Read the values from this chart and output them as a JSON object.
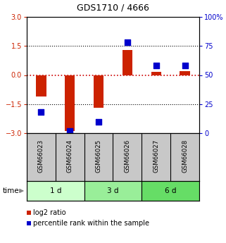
{
  "title": "GDS1710 / 4666",
  "samples": [
    "GSM66023",
    "GSM66024",
    "GSM66025",
    "GSM66026",
    "GSM66027",
    "GSM66028"
  ],
  "log2_ratio": [
    -1.1,
    -2.9,
    -1.7,
    1.3,
    0.15,
    0.2
  ],
  "percentile_rank": [
    18,
    2,
    10,
    78,
    58,
    58
  ],
  "time_groups": [
    {
      "label": "1 d",
      "samples": [
        0,
        1
      ],
      "color": "#ccffcc"
    },
    {
      "label": "3 d",
      "samples": [
        2,
        3
      ],
      "color": "#99ee99"
    },
    {
      "label": "6 d",
      "samples": [
        4,
        5
      ],
      "color": "#66dd66"
    }
  ],
  "ylim_left": [
    -3,
    3
  ],
  "ylim_right": [
    0,
    100
  ],
  "yticks_left": [
    -3,
    -1.5,
    0,
    1.5,
    3
  ],
  "yticks_right": [
    0,
    25,
    50,
    75,
    100
  ],
  "bar_color": "#cc2200",
  "dot_color": "#0000cc",
  "hline_color": "#cc0000",
  "dotline_color": "#000000",
  "plot_bg": "#ffffff",
  "sample_bg": "#c8c8c8",
  "legend_red_label": "log2 ratio",
  "legend_blue_label": "percentile rank within the sample",
  "bar_width": 0.35,
  "dot_size": 40
}
